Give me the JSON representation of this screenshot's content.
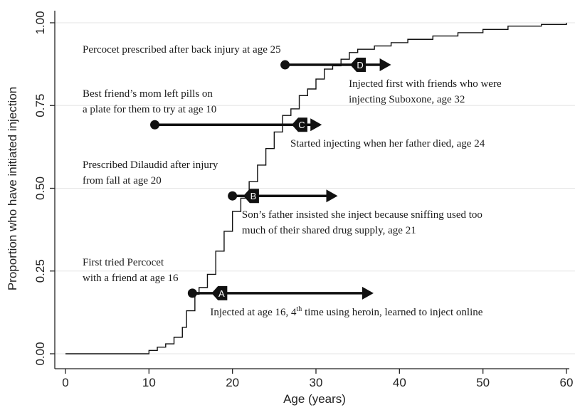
{
  "chart_data": {
    "type": "step",
    "x_label": "Age (years)",
    "y_label": "Proportion who have initiated injection",
    "xlim": [
      0,
      60
    ],
    "xticks": [
      0,
      10,
      20,
      30,
      40,
      50,
      60
    ],
    "ylim": [
      0,
      1
    ],
    "yticks": [
      {
        "value": 0,
        "label": "0.00"
      },
      {
        "value": 0.25,
        "label": "0.25"
      },
      {
        "value": 0.5,
        "label": "0.50"
      },
      {
        "value": 0.75,
        "label": "0.75"
      },
      {
        "value": 1,
        "label": "1.00"
      }
    ],
    "grid": true,
    "color": "#111111",
    "x": [
      0,
      10,
      11,
      12,
      13,
      14,
      14.5,
      15.5,
      16,
      17,
      18,
      19,
      20,
      21,
      22,
      23,
      24,
      25,
      26,
      27,
      28,
      29,
      30,
      31,
      32,
      33,
      34,
      35,
      37,
      39,
      41,
      44,
      47,
      50,
      53,
      57,
      60
    ],
    "values": [
      0,
      0.01,
      0.02,
      0.03,
      0.05,
      0.08,
      0.13,
      0.18,
      0.2,
      0.24,
      0.31,
      0.37,
      0.43,
      0.47,
      0.52,
      0.57,
      0.62,
      0.67,
      0.72,
      0.74,
      0.78,
      0.8,
      0.83,
      0.86,
      0.87,
      0.89,
      0.91,
      0.92,
      0.93,
      0.94,
      0.95,
      0.96,
      0.97,
      0.98,
      0.99,
      0.995,
      1.0
    ],
    "annotations": [
      {
        "label": "A",
        "y": 0.183,
        "start": 15.2,
        "inject": 17.5,
        "end": 36.9,
        "before": [
          "First tried Percocet",
          "with a friend at age 16"
        ],
        "after": [
          [
            "Injected at age 16, 4",
            "th",
            " time using heroin, learned to inject online"
          ]
        ]
      },
      {
        "label": "B",
        "y": 0.477,
        "start": 20.0,
        "inject": 21.3,
        "end": 32.6,
        "before": [
          "Prescribed Dilaudid after injury",
          "from fall at age 20"
        ],
        "after": [
          [
            "Son’s father insisted she inject because sniffing used too"
          ],
          [
            "much of their shared drug supply, age 21"
          ]
        ]
      },
      {
        "label": "C",
        "y": 0.692,
        "start": 10.7,
        "inject": 27.1,
        "end": 30.7,
        "before": [
          "Best friend’s mom left pills on",
          "a plate for them to try at age 10"
        ],
        "after": [
          [
            "Started injecting when her father died, age 24"
          ]
        ]
      },
      {
        "label": "D",
        "y": 0.873,
        "start": 26.3,
        "inject": 34.1,
        "end": 39.0,
        "before": [
          "Percocet prescribed after back injury at age 25"
        ],
        "after": [
          [
            "Injected first with friends who were"
          ],
          [
            "injecting Suboxone, age 32"
          ]
        ]
      }
    ]
  }
}
